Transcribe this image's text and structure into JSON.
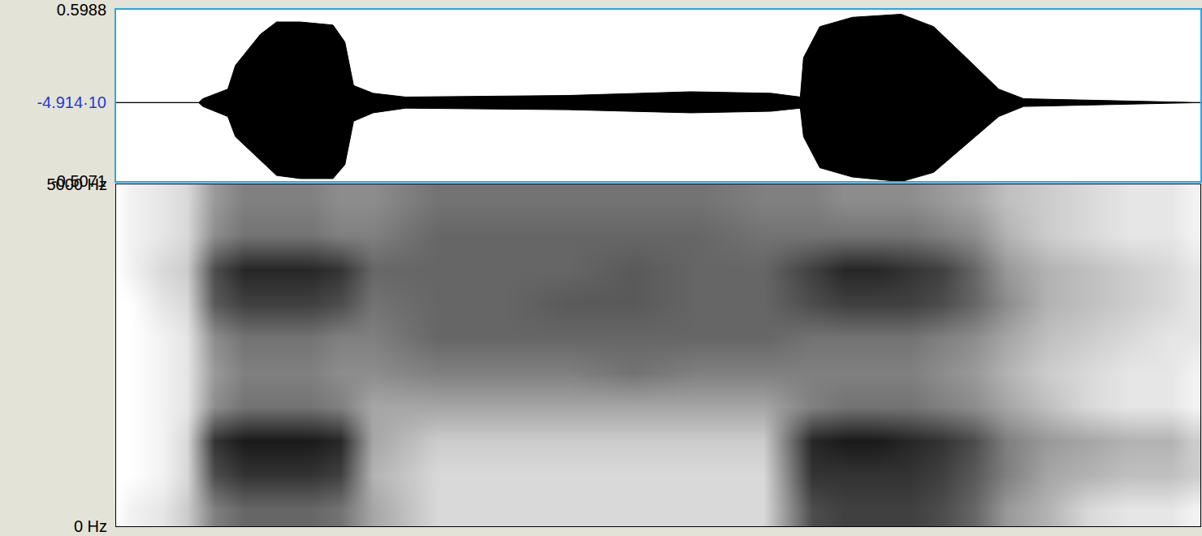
{
  "chart_data": [
    {
      "type": "area",
      "x": [
        0,
        0.076,
        0.08,
        0.103,
        0.11,
        0.133,
        0.148,
        0.17,
        0.2,
        0.211,
        0.219,
        0.237,
        0.267,
        0.417,
        0.53,
        0.604,
        0.631,
        0.634,
        0.649,
        0.679,
        0.724,
        0.754,
        0.784,
        0.814,
        0.837,
        0.942,
        1
      ],
      "values": [
        0,
        0,
        0.025,
        0.087,
        0.24,
        0.44,
        0.52,
        0.52,
        0.5,
        0.39,
        0.11,
        0.06,
        0.036,
        0.046,
        0.07,
        0.06,
        0.036,
        0.29,
        0.49,
        0.55,
        0.57,
        0.49,
        0.29,
        0.087,
        0.025,
        0.01,
        0
      ],
      "values_min": [
        0,
        0,
        -0.025,
        -0.09,
        -0.22,
        -0.37,
        -0.47,
        -0.49,
        -0.49,
        -0.4,
        -0.12,
        -0.066,
        -0.036,
        -0.046,
        -0.066,
        -0.056,
        -0.036,
        -0.22,
        -0.42,
        -0.48,
        -0.51,
        -0.45,
        -0.27,
        -0.09,
        -0.025,
        -0.01,
        0
      ],
      "color": "#000000",
      "xlim": [
        0,
        1
      ],
      "ylim": [
        -0.5071,
        0.5988
      ],
      "yticks": [
        -0.5071,
        {
          "value": -4.914e-05,
          "label": "-4.914·10"
        },
        0.5988
      ],
      "tick_labels": "y"
    },
    {
      "type": "heatmap",
      "x": [
        0,
        0.013,
        0.043,
        0.065,
        0.091,
        0.118,
        0.148,
        0.178,
        0.207,
        0.237,
        0.297,
        0.357,
        0.417,
        0.477,
        0.537,
        0.597,
        0.642,
        0.672,
        0.702,
        0.732,
        0.762,
        0.792,
        0.822,
        0.859,
        0.897,
        0.934,
        0.972,
        0.994
      ],
      "y": [
        250,
        750,
        1250,
        1750,
        2250,
        2750,
        3250,
        3750,
        4250,
        4750
      ],
      "z": [
        [
          0,
          0,
          0,
          0,
          0,
          0,
          0,
          0,
          0,
          0
        ],
        [
          0.05,
          0,
          0,
          0,
          0,
          0,
          0,
          0.05,
          0.05,
          0.05
        ],
        [
          0.1,
          0.05,
          0.05,
          0.05,
          0.05,
          0.05,
          0.1,
          0.15,
          0.1,
          0.1
        ],
        [
          0.2,
          0.15,
          0.15,
          0.1,
          0.1,
          0.1,
          0.15,
          0.2,
          0.15,
          0.15
        ],
        [
          0.5,
          0.7,
          0.8,
          0.45,
          0.4,
          0.45,
          0.65,
          0.7,
          0.45,
          0.4
        ],
        [
          0.6,
          0.8,
          0.9,
          0.55,
          0.5,
          0.55,
          0.75,
          0.85,
          0.55,
          0.5
        ],
        [
          0.6,
          0.8,
          0.9,
          0.55,
          0.5,
          0.55,
          0.75,
          0.85,
          0.55,
          0.5
        ],
        [
          0.6,
          0.8,
          0.9,
          0.55,
          0.5,
          0.55,
          0.75,
          0.85,
          0.55,
          0.5
        ],
        [
          0.55,
          0.75,
          0.85,
          0.5,
          0.45,
          0.5,
          0.7,
          0.8,
          0.5,
          0.45
        ],
        [
          0.35,
          0.3,
          0.35,
          0.35,
          0.45,
          0.5,
          0.55,
          0.6,
          0.5,
          0.45
        ],
        [
          0.15,
          0.15,
          0.2,
          0.35,
          0.5,
          0.6,
          0.6,
          0.6,
          0.6,
          0.55
        ],
        [
          0.15,
          0.15,
          0.2,
          0.35,
          0.5,
          0.6,
          0.6,
          0.6,
          0.6,
          0.55
        ],
        [
          0.15,
          0.15,
          0.2,
          0.35,
          0.5,
          0.6,
          0.65,
          0.6,
          0.6,
          0.55
        ],
        [
          0.15,
          0.15,
          0.2,
          0.35,
          0.55,
          0.6,
          0.65,
          0.65,
          0.6,
          0.55
        ],
        [
          0.15,
          0.15,
          0.2,
          0.35,
          0.5,
          0.6,
          0.6,
          0.6,
          0.6,
          0.55
        ],
        [
          0.15,
          0.15,
          0.2,
          0.35,
          0.5,
          0.6,
          0.6,
          0.6,
          0.55,
          0.5
        ],
        [
          0.7,
          0.8,
          0.85,
          0.5,
          0.5,
          0.55,
          0.7,
          0.75,
          0.55,
          0.5
        ],
        [
          0.75,
          0.8,
          0.9,
          0.55,
          0.5,
          0.55,
          0.75,
          0.85,
          0.55,
          0.45
        ],
        [
          0.75,
          0.8,
          0.9,
          0.55,
          0.5,
          0.55,
          0.75,
          0.85,
          0.55,
          0.45
        ],
        [
          0.75,
          0.8,
          0.85,
          0.55,
          0.5,
          0.55,
          0.75,
          0.8,
          0.55,
          0.45
        ],
        [
          0.7,
          0.75,
          0.8,
          0.5,
          0.45,
          0.5,
          0.7,
          0.75,
          0.5,
          0.4
        ],
        [
          0.6,
          0.65,
          0.7,
          0.45,
          0.4,
          0.45,
          0.6,
          0.6,
          0.45,
          0.35
        ],
        [
          0.4,
          0.5,
          0.5,
          0.35,
          0.3,
          0.35,
          0.45,
          0.4,
          0.3,
          0.25
        ],
        [
          0.3,
          0.35,
          0.4,
          0.25,
          0.2,
          0.25,
          0.3,
          0.3,
          0.2,
          0.2
        ],
        [
          0.15,
          0.3,
          0.35,
          0.15,
          0.15,
          0.2,
          0.25,
          0.25,
          0.15,
          0.15
        ],
        [
          0.1,
          0.25,
          0.3,
          0.1,
          0.1,
          0.15,
          0.2,
          0.2,
          0.1,
          0.1
        ],
        [
          0.1,
          0.25,
          0.3,
          0.1,
          0.1,
          0.1,
          0.15,
          0.15,
          0.1,
          0.1
        ],
        [
          0.05,
          0.2,
          0.2,
          0.05,
          0.05,
          0.1,
          0.1,
          0.1,
          0.05,
          0.05
        ]
      ],
      "zlim": [
        0,
        1
      ],
      "xlim": [
        0,
        1
      ],
      "ylim": [
        0,
        5000
      ],
      "yticks": [
        {
          "value": 0,
          "label": "0 Hz"
        },
        {
          "value": 5000,
          "label": "5000 Hz"
        }
      ],
      "tick_labels": "y"
    }
  ]
}
